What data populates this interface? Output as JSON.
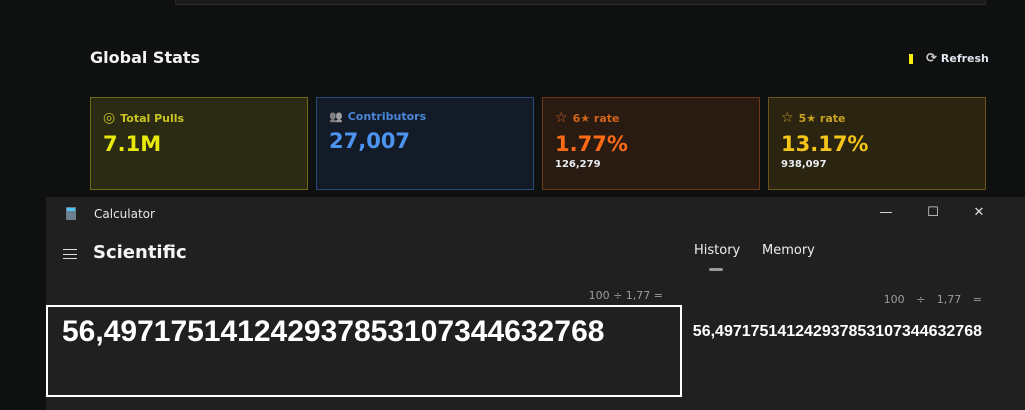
{
  "dashboard": {
    "title": "Global Stats",
    "refresh_label": "Refresh",
    "cards": [
      {
        "label": "Total Pulls",
        "value": "7.1M",
        "sub": "",
        "icon": "target-icon",
        "color": "#e8e80a",
        "label_color": "#c9c422"
      },
      {
        "label": "Contributors",
        "value": "27,007",
        "sub": "",
        "icon": "users-icon",
        "color": "#4d94f0",
        "label_color": "#4a86d6"
      },
      {
        "label": "6★ rate",
        "value": "1.77%",
        "sub": "126,279",
        "icon": "star-icon",
        "color": "#ff6a14",
        "label_color": "#d0651a"
      },
      {
        "label": "5★ rate",
        "value": "13.17%",
        "sub": "938,097",
        "icon": "star-icon",
        "color": "#f5c518",
        "label_color": "#c9a020"
      }
    ]
  },
  "calculator": {
    "window_title": "Calculator",
    "mode": "Scientific",
    "tabs": [
      {
        "label": "History",
        "active": true
      },
      {
        "label": "Memory",
        "active": false
      }
    ],
    "expression": "100 ÷ 1,77 =",
    "display": "56,4971751412429378531073446327 68",
    "history": {
      "expression": "100 ÷ 1,77 =",
      "result": "56,497175141242937853107344632768"
    }
  }
}
